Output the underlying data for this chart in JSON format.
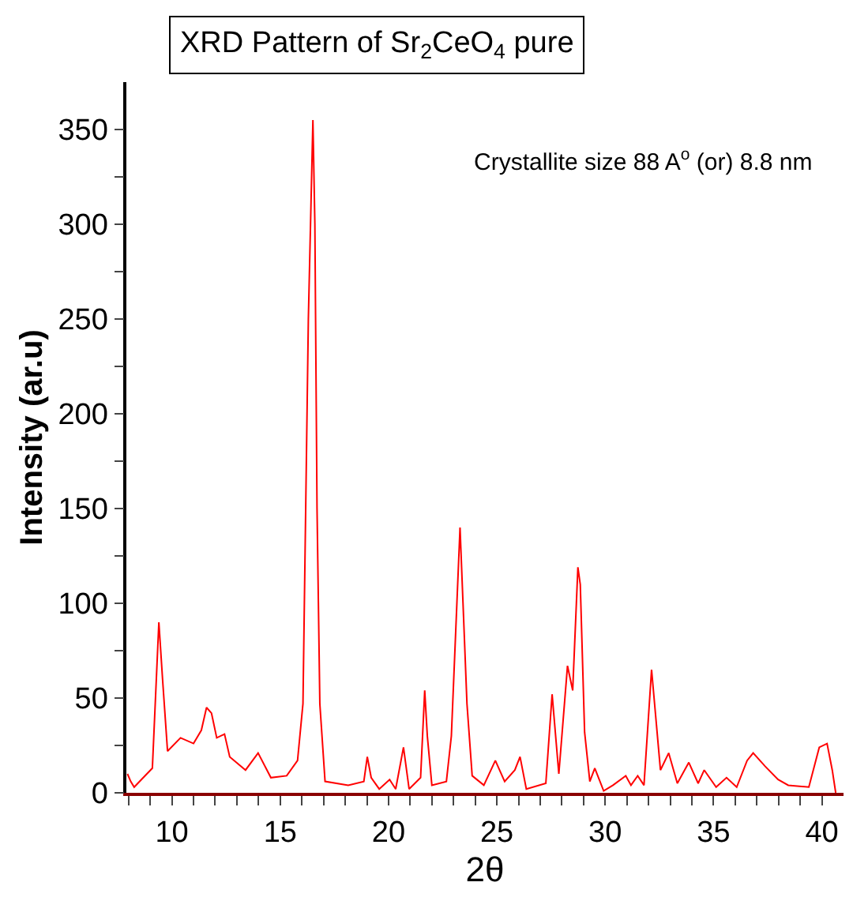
{
  "chart_data": {
    "type": "line",
    "title": "XRD Pattern of Sr$_{2}$CeO$_{4}$ pure",
    "xlabel": "2θ",
    "ylabel": "Intensity (ar.u)",
    "annotations": [
      "Crystallite size 88 A$^{o}$ (or) 8.8 nm"
    ],
    "x": [
      7.95,
      8.1,
      8.26,
      9.1,
      9.4,
      9.57,
      9.8,
      10.4,
      11.0,
      11.36,
      11.6,
      11.83,
      12.07,
      12.43,
      12.67,
      13.4,
      13.98,
      14.57,
      15.3,
      15.8,
      16.05,
      16.3,
      16.51,
      16.6,
      16.7,
      16.83,
      17.07,
      18.14,
      18.86,
      19.02,
      19.2,
      19.57,
      20.05,
      20.33,
      20.69,
      20.95,
      21.48,
      21.67,
      21.79,
      22.0,
      22.67,
      22.9,
      23.3,
      23.62,
      23.86,
      24.4,
      24.93,
      25.36,
      25.83,
      26.07,
      26.36,
      27.26,
      27.55,
      27.86,
      28.26,
      28.5,
      28.74,
      28.85,
      29.05,
      29.29,
      29.52,
      29.93,
      30.36,
      30.95,
      31.19,
      31.5,
      31.79,
      32.14,
      32.55,
      32.93,
      33.33,
      33.86,
      34.29,
      34.57,
      35.12,
      35.6,
      36.07,
      36.55,
      36.83,
      37.38,
      37.98,
      38.45,
      39.4,
      39.88,
      40.24,
      40.48,
      40.64
    ],
    "series": [
      {
        "color": "#ff0000",
        "values": [
          10,
          6,
          3,
          13,
          90,
          60,
          22,
          29,
          26,
          33,
          45,
          42,
          29,
          31,
          19,
          12,
          21,
          8,
          9,
          17,
          47,
          250,
          355,
          300,
          150,
          47,
          6,
          4,
          6,
          19,
          8,
          2,
          7,
          2,
          24,
          2,
          8,
          54,
          30,
          4,
          6,
          30,
          140,
          47,
          9,
          4,
          17,
          6,
          12,
          19,
          2,
          5,
          52,
          10,
          67,
          54,
          119,
          110,
          32,
          6,
          13,
          1,
          4,
          9,
          4,
          9,
          4,
          65,
          12,
          21,
          5,
          16,
          5,
          12,
          3,
          8,
          3,
          17,
          21,
          14,
          7,
          4,
          3,
          24,
          26,
          12,
          0
        ]
      }
    ],
    "xlim": [
      7.9,
      41
    ],
    "ylim": [
      0,
      375
    ],
    "xticks": [
      {
        "value": 8,
        "label": null
      },
      {
        "value": 9,
        "label": null
      },
      10,
      {
        "value": 11,
        "label": null
      },
      {
        "value": 12,
        "label": null
      },
      {
        "value": 13,
        "label": null
      },
      {
        "value": 14,
        "label": null
      },
      15,
      {
        "value": 16,
        "label": null
      },
      {
        "value": 17,
        "label": null
      },
      {
        "value": 18,
        "label": null
      },
      {
        "value": 19,
        "label": null
      },
      20,
      {
        "value": 21,
        "label": null
      },
      {
        "value": 22,
        "label": null
      },
      {
        "value": 23,
        "label": null
      },
      {
        "value": 24,
        "label": null
      },
      25,
      {
        "value": 26,
        "label": null
      },
      {
        "value": 27,
        "label": null
      },
      {
        "value": 28,
        "label": null
      },
      {
        "value": 29,
        "label": null
      },
      30,
      {
        "value": 31,
        "label": null
      },
      {
        "value": 32,
        "label": null
      },
      {
        "value": 33,
        "label": null
      },
      {
        "value": 34,
        "label": null
      },
      35,
      {
        "value": 36,
        "label": null
      },
      {
        "value": 37,
        "label": null
      },
      {
        "value": 38,
        "label": null
      },
      {
        "value": 39,
        "label": null
      },
      40
    ],
    "yticks": [
      0,
      {
        "value": 25,
        "label": null
      },
      50,
      {
        "value": 75,
        "label": null
      },
      100,
      {
        "value": 125,
        "label": null
      },
      150,
      {
        "value": 175,
        "label": null
      },
      200,
      {
        "value": 225,
        "label": null
      },
      250,
      {
        "value": 275,
        "label": null
      },
      300,
      {
        "value": 325,
        "label": null
      },
      350
    ],
    "marker": "none",
    "line_style": "solid"
  }
}
